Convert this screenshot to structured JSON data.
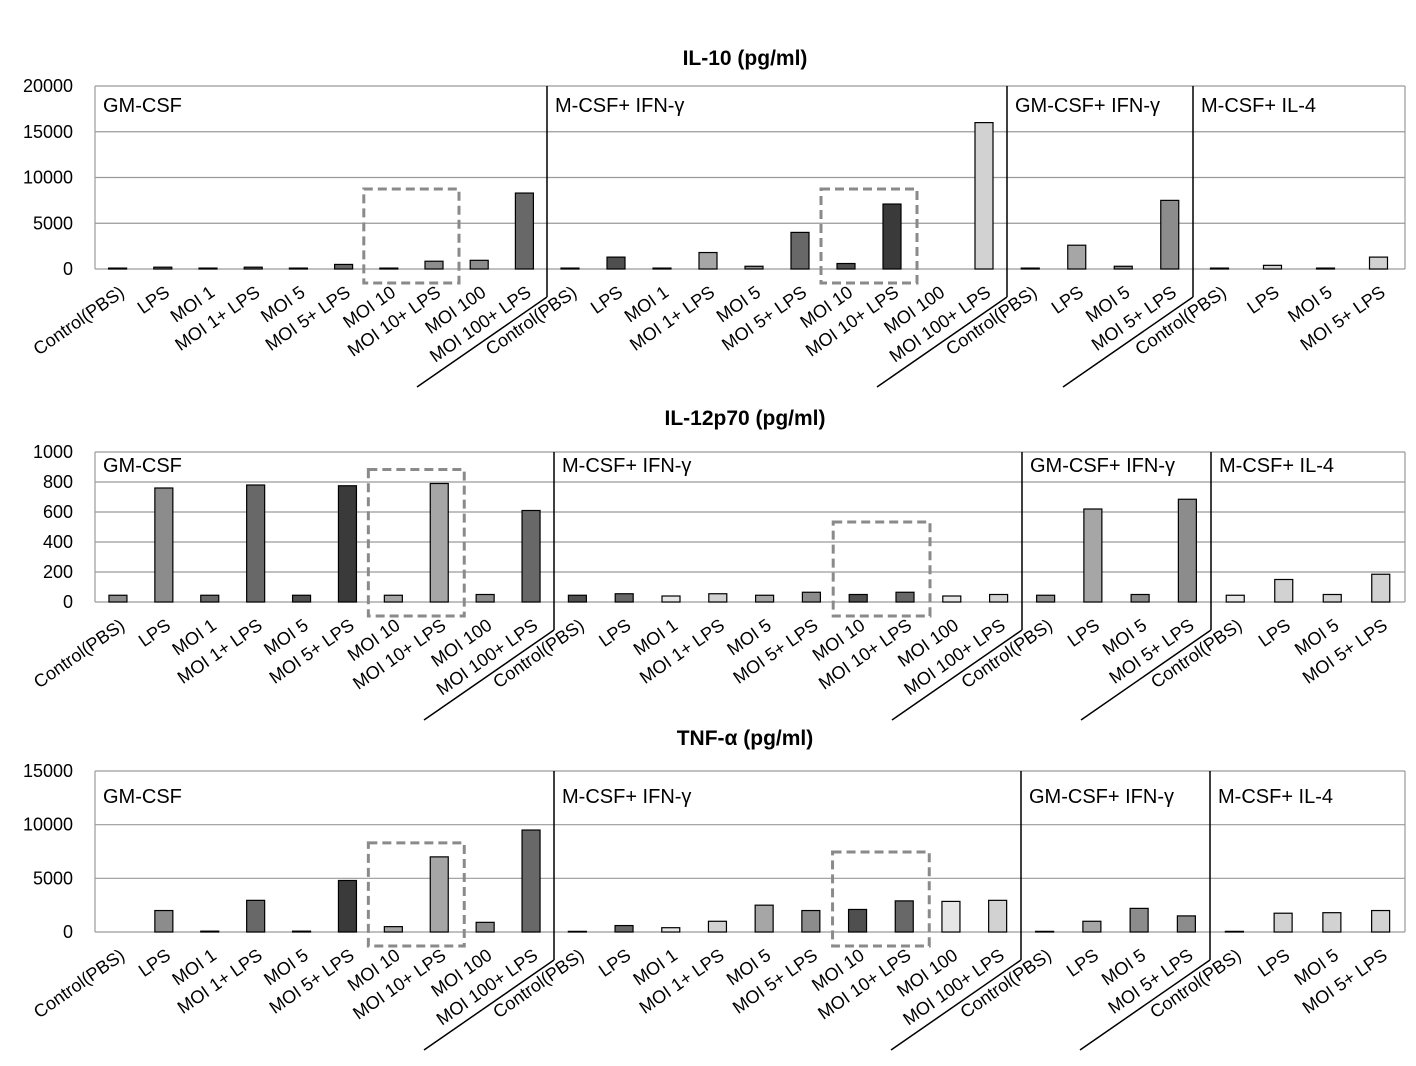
{
  "colors": {
    "very_light": "#e6e6e6",
    "light": "#d2d2d2",
    "medium": "#a6a6a6",
    "medium_dark": "#8c8c8c",
    "dark": "#686868",
    "darker": "#4f4f4f",
    "darkest": "#3a3a3a",
    "grid": "#9a9a9a",
    "highlight_box": "#8a8a8a"
  },
  "chart_data": [
    {
      "type": "bar",
      "title": "IL-10 (pg/ml)",
      "ylim": [
        0,
        20000
      ],
      "yticks": [
        "0",
        "5000",
        "10000",
        "15000",
        "20000"
      ],
      "grid": true,
      "groups": [
        {
          "label": "GM-CSF",
          "categories": [
            "Control(PBS)",
            "LPS",
            "MOI 1",
            "MOI 1+ LPS",
            "MOI 5",
            "MOI 5+ LPS",
            "MOI 10",
            "MOI 10+ LPS",
            "MOI 100",
            "MOI 100+ LPS"
          ],
          "values": [
            100,
            200,
            100,
            200,
            100,
            500,
            100,
            850,
            950,
            8300
          ],
          "shades": [
            "very_light",
            "dark",
            "dark",
            "dark",
            "medium_dark",
            "dark",
            "medium_dark",
            "medium_dark",
            "medium_dark",
            "dark"
          ]
        },
        {
          "label": "M-CSF+ IFN-γ",
          "categories": [
            "Control(PBS)",
            "LPS",
            "MOI 1",
            "MOI 1+ LPS",
            "MOI 5",
            "MOI 5+ LPS",
            "MOI 10",
            "MOI 10+ LPS",
            "MOI 100",
            "MOI 100+ LPS"
          ],
          "values": [
            100,
            1300,
            100,
            1800,
            300,
            4000,
            600,
            7100,
            0,
            16000
          ],
          "shades": [
            "very_light",
            "darker",
            "very_light",
            "medium",
            "medium_dark",
            "dark",
            "darker",
            "darkest",
            "light",
            "light"
          ]
        },
        {
          "label": "GM-CSF+ IFN-γ",
          "categories": [
            "Control(PBS)",
            "LPS",
            "MOI 5",
            "MOI 5+ LPS"
          ],
          "values": [
            100,
            2600,
            300,
            7500
          ],
          "shades": [
            "very_light",
            "medium",
            "medium_dark",
            "medium_dark"
          ]
        },
        {
          "label": "M-CSF+ IL-4",
          "categories": [
            "Control(PBS)",
            "LPS",
            "MOI 5",
            "MOI 5+ LPS"
          ],
          "values": [
            100,
            400,
            100,
            1300
          ],
          "shades": [
            "very_light",
            "light",
            "light",
            "light"
          ]
        }
      ],
      "highlight": [
        {
          "group": 0,
          "categories": [
            "MOI 10",
            "MOI 10+ LPS"
          ]
        },
        {
          "group": 1,
          "categories": [
            "MOI 10",
            "MOI 10+ LPS"
          ]
        }
      ]
    },
    {
      "type": "bar",
      "title": "IL-12p70 (pg/ml)",
      "ylim": [
        0,
        1000
      ],
      "yticks": [
        "0",
        "200",
        "400",
        "600",
        "800",
        "1000"
      ],
      "grid": true,
      "groups": [
        {
          "label": "GM-CSF",
          "categories": [
            "Control(PBS)",
            "LPS",
            "MOI 1",
            "MOI 1+ LPS",
            "MOI 5",
            "MOI 5+ LPS",
            "MOI 10",
            "MOI 10+ LPS",
            "MOI 100",
            "MOI 100+ LPS"
          ],
          "values": [
            45,
            760,
            45,
            780,
            45,
            775,
            45,
            790,
            50,
            610
          ],
          "shades": [
            "medium_dark",
            "medium_dark",
            "dark",
            "dark",
            "darker",
            "darkest",
            "medium",
            "medium",
            "medium_dark",
            "dark"
          ]
        },
        {
          "label": "M-CSF+ IFN-γ",
          "categories": [
            "Control(PBS)",
            "LPS",
            "MOI 1",
            "MOI 1+ LPS",
            "MOI 5",
            "MOI 5+ LPS",
            "MOI 10",
            "MOI 10+ LPS",
            "MOI 100",
            "MOI 100+ LPS"
          ],
          "values": [
            45,
            55,
            40,
            55,
            45,
            65,
            50,
            65,
            40,
            50
          ],
          "shades": [
            "darker",
            "dark",
            "very_light",
            "light",
            "medium",
            "medium_dark",
            "darker",
            "dark",
            "very_light",
            "light"
          ]
        },
        {
          "label": "GM-CSF+ IFN-γ",
          "categories": [
            "Control(PBS)",
            "LPS",
            "MOI 5",
            "MOI 5+ LPS"
          ],
          "values": [
            45,
            620,
            50,
            685
          ],
          "shades": [
            "medium_dark",
            "medium",
            "medium_dark",
            "medium_dark"
          ]
        },
        {
          "label": "M-CSF+ IL-4",
          "categories": [
            "Control(PBS)",
            "LPS",
            "MOI 5",
            "MOI 5+ LPS"
          ],
          "values": [
            45,
            150,
            50,
            185
          ],
          "shades": [
            "very_light",
            "light",
            "light",
            "light"
          ]
        }
      ],
      "highlight": [
        {
          "group": 0,
          "categories": [
            "MOI 10",
            "MOI 10+ LPS"
          ]
        },
        {
          "group": 1,
          "categories": [
            "MOI 10",
            "MOI 10+ LPS"
          ]
        }
      ]
    },
    {
      "type": "bar",
      "title": "TNF-α (pg/ml)",
      "ylim": [
        0,
        15000
      ],
      "yticks": [
        "0",
        "5000",
        "10000",
        "15000"
      ],
      "grid": true,
      "groups": [
        {
          "label": "GM-CSF",
          "categories": [
            "Control(PBS)",
            "LPS",
            "MOI 1",
            "MOI 1+ LPS",
            "MOI 5",
            "MOI 5+ LPS",
            "MOI 10",
            "MOI 10+ LPS",
            "MOI 100",
            "MOI 100+ LPS"
          ],
          "values": [
            0,
            2000,
            80,
            2950,
            80,
            4800,
            500,
            7000,
            900,
            9500
          ],
          "shades": [
            "very_light",
            "medium_dark",
            "dark",
            "dark",
            "darker",
            "darkest",
            "medium",
            "medium",
            "medium_dark",
            "dark"
          ]
        },
        {
          "label": "M-CSF+ IFN-γ",
          "categories": [
            "Control(PBS)",
            "LPS",
            "MOI 1",
            "MOI 1+ LPS",
            "MOI 5",
            "MOI 5+ LPS",
            "MOI 10",
            "MOI 10+ LPS",
            "MOI 100",
            "MOI 100+ LPS"
          ],
          "values": [
            60,
            600,
            400,
            1000,
            2500,
            2000,
            2100,
            2900,
            2850,
            2950
          ],
          "shades": [
            "darker",
            "dark",
            "very_light",
            "light",
            "medium",
            "medium_dark",
            "darker",
            "dark",
            "very_light",
            "light"
          ]
        },
        {
          "label": "GM-CSF+ IFN-γ",
          "categories": [
            "Control(PBS)",
            "LPS",
            "MOI 5",
            "MOI 5+ LPS"
          ],
          "values": [
            60,
            1000,
            2200,
            1500
          ],
          "shades": [
            "medium_dark",
            "medium",
            "medium_dark",
            "medium_dark"
          ]
        },
        {
          "label": "M-CSF+ IL-4",
          "categories": [
            "Control(PBS)",
            "LPS",
            "MOI 5",
            "MOI 5+ LPS"
          ],
          "values": [
            60,
            1750,
            1800,
            2000
          ],
          "shades": [
            "very_light",
            "light",
            "light",
            "light"
          ]
        }
      ],
      "highlight": [
        {
          "group": 0,
          "categories": [
            "MOI 10",
            "MOI 10+ LPS"
          ]
        },
        {
          "group": 1,
          "categories": [
            "MOI 10",
            "MOI 10+ LPS"
          ]
        }
      ]
    }
  ]
}
